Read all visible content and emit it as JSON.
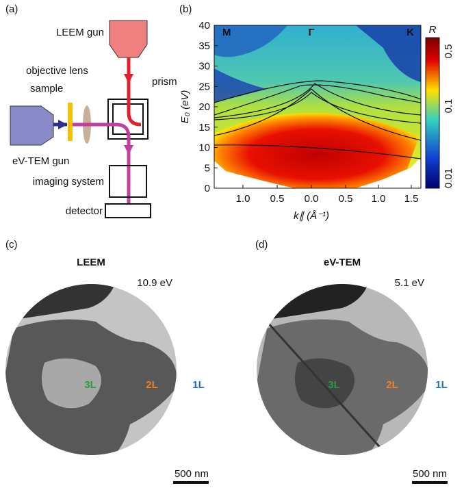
{
  "panels": {
    "a": {
      "label": "(a)",
      "leem_gun": "LEEM gun",
      "objective_lens": "objective lens",
      "sample": "sample",
      "prism": "prism",
      "evtem_gun": "eV-TEM gun",
      "imaging_system": "imaging system",
      "detector": "detector"
    },
    "b": {
      "label": "(b)",
      "y_label": "E₀ (eV)",
      "x_label": "k∥ (Å⁻¹)",
      "yticks": [
        "0",
        "5",
        "10",
        "15",
        "20",
        "25",
        "30",
        "35",
        "40"
      ],
      "xticks": [
        "1.0",
        "0.5",
        "0.0",
        "0.5",
        "1.0",
        "1.5"
      ],
      "points": [
        "M",
        "Γ",
        "K"
      ],
      "colorbar_label": "R",
      "colorbar_ticks": [
        "0.5",
        "0.1",
        "0.01"
      ]
    },
    "c": {
      "label": "(c)",
      "title": "LEEM",
      "energy": "10.9 eV",
      "layers": [
        "3L",
        "2L",
        "1L"
      ],
      "scale": "500 nm"
    },
    "d": {
      "label": "(d)",
      "title": "eV-TEM",
      "energy": "5.1 eV",
      "layers": [
        "3L",
        "2L",
        "1L"
      ],
      "scale": "500 nm"
    }
  }
}
